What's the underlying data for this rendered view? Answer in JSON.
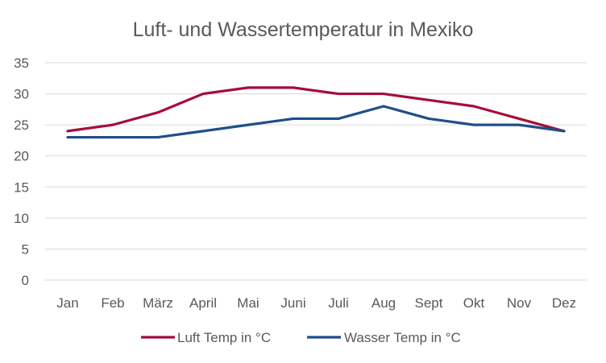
{
  "chart_data": {
    "type": "line",
    "title": "Luft- und Wassertemperatur in Mexiko",
    "xlabel": "",
    "ylabel": "",
    "categories": [
      "Jan",
      "Feb",
      "März",
      "April",
      "Mai",
      "Juni",
      "Juli",
      "Aug",
      "Sept",
      "Okt",
      "Nov",
      "Dez"
    ],
    "ylim": [
      0,
      35
    ],
    "yticks": [
      0,
      5,
      10,
      15,
      20,
      25,
      30,
      35
    ],
    "grid": true,
    "legend_position": "bottom",
    "series": [
      {
        "name": "Luft Temp in °C",
        "color": "#a50d3a",
        "values": [
          24,
          25,
          27,
          30,
          31,
          31,
          30,
          30,
          29,
          28,
          26,
          24
        ]
      },
      {
        "name": "Wasser Temp in °C",
        "color": "#1f4e8c",
        "values": [
          23,
          23,
          23,
          24,
          25,
          26,
          26,
          28,
          26,
          25,
          25,
          24
        ]
      }
    ]
  }
}
